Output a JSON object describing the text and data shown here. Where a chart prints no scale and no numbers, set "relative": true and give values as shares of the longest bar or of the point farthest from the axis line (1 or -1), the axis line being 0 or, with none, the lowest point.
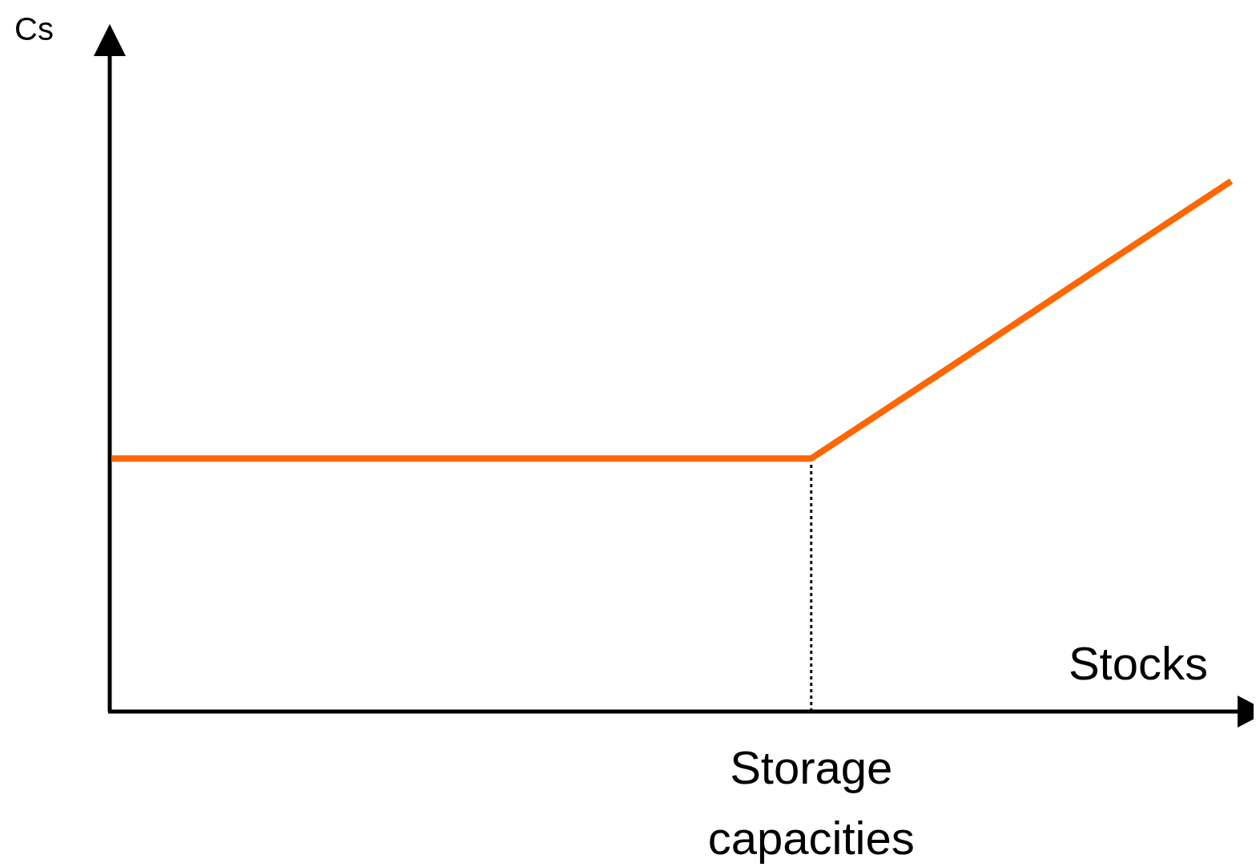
{
  "chart_data": {
    "type": "line",
    "relative": true,
    "xlabel": "Stocks",
    "ylabel": "Cs",
    "categories": [
      null,
      null,
      null,
      null,
      null,
      null,
      null,
      null,
      null
    ],
    "series": [
      {
        "color": "#ff6600",
        "values": [
          0.477,
          0.477,
          0.477,
          0.477,
          0.477,
          0.477,
          0.651,
          0.826,
          1
        ]
      }
    ],
    "annotations": [
      "Storage capacities"
    ],
    "marker": "none",
    "line_style": "solid"
  }
}
